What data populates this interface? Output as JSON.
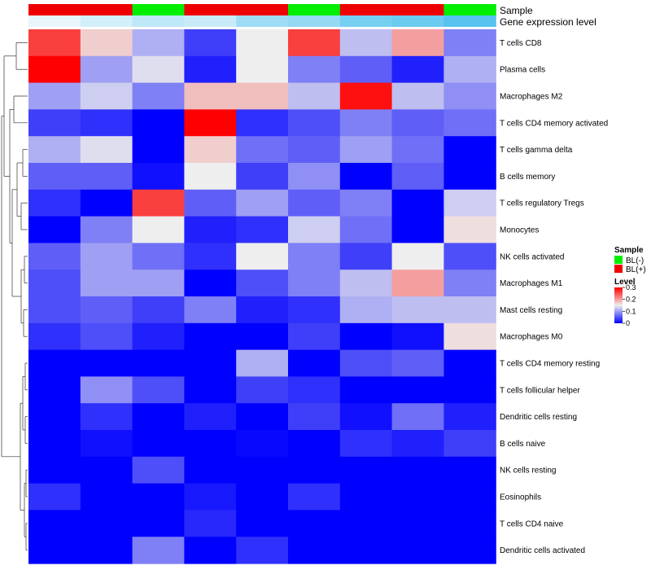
{
  "chart_data": {
    "type": "heatmap",
    "title": "",
    "annotations": {
      "sample": {
        "label": "Sample",
        "values": [
          "BL(+)",
          "BL(+)",
          "BL(-)",
          "BL(+)",
          "BL(+)",
          "BL(-)",
          "BL(+)",
          "BL(+)",
          "BL(-)"
        ]
      },
      "gene_expression": {
        "label": "Gene expression level",
        "values": [
          0.02,
          0.04,
          0.06,
          0.05,
          0.09,
          0.1,
          0.13,
          0.14,
          0.16
        ]
      }
    },
    "rows": [
      "T cells CD8",
      "Plasma cells",
      "Macrophages M2",
      "T cells CD4 memory activated",
      "T cells gamma delta",
      "B cells memory",
      "T cells regulatory  Tregs",
      "Monocytes",
      "NK cells activated",
      "Macrophages M1",
      "Mast cells resting",
      "Macrophages M0",
      "T cells CD4 memory resting",
      "T cells follicular helper",
      "Dendritic cells resting",
      "B cells naive",
      "NK cells resting",
      "Eosinophils",
      "T cells CD4 naive",
      "Dendritic cells activated"
    ],
    "values": [
      [
        0.26,
        0.17,
        0.11,
        0.04,
        0.15,
        0.26,
        0.12,
        0.2,
        0.08
      ],
      [
        0.3,
        0.1,
        0.14,
        0.02,
        0.15,
        0.08,
        0.06,
        0.02,
        0.11
      ],
      [
        0.1,
        0.13,
        0.08,
        0.18,
        0.18,
        0.12,
        0.29,
        0.12,
        0.09
      ],
      [
        0.04,
        0.03,
        0.0,
        0.3,
        0.03,
        0.05,
        0.08,
        0.06,
        0.07
      ],
      [
        0.11,
        0.14,
        0.0,
        0.17,
        0.07,
        0.06,
        0.1,
        0.07,
        0.0
      ],
      [
        0.06,
        0.06,
        0.01,
        0.15,
        0.04,
        0.09,
        0.0,
        0.06,
        0.0
      ],
      [
        0.03,
        0.0,
        0.26,
        0.06,
        0.1,
        0.06,
        0.08,
        0.0,
        0.13
      ],
      [
        0.0,
        0.08,
        0.15,
        0.02,
        0.03,
        0.13,
        0.07,
        0.0,
        0.16
      ],
      [
        0.06,
        0.1,
        0.07,
        0.03,
        0.15,
        0.08,
        0.04,
        0.15,
        0.05
      ],
      [
        0.05,
        0.1,
        0.1,
        0.0,
        0.05,
        0.08,
        0.12,
        0.2,
        0.08
      ],
      [
        0.05,
        0.06,
        0.04,
        0.08,
        0.02,
        0.03,
        0.11,
        0.12,
        0.12
      ],
      [
        0.03,
        0.05,
        0.02,
        0.0,
        0.0,
        0.04,
        0.0,
        0.01,
        0.16
      ],
      [
        0.0,
        0.0,
        0.0,
        0.0,
        0.11,
        0.0,
        0.05,
        0.06,
        0.0
      ],
      [
        0.0,
        0.09,
        0.05,
        0.0,
        0.04,
        0.03,
        0.0,
        0.0,
        0.0
      ],
      [
        0.0,
        0.03,
        0.0,
        0.02,
        0.0,
        0.04,
        0.01,
        0.07,
        0.02
      ],
      [
        0.0,
        0.01,
        0.0,
        0.0,
        0.005,
        0.0,
        0.03,
        0.02,
        0.04
      ],
      [
        0.0,
        0.0,
        0.05,
        0.0,
        0.0,
        0.0,
        0.0,
        0.0,
        0.0
      ],
      [
        0.03,
        0.0,
        0.0,
        0.015,
        0.0,
        0.03,
        0.0,
        0.0,
        0.0
      ],
      [
        0.0,
        0.0,
        0.0,
        0.025,
        0.0,
        0.0,
        0.0,
        0.0,
        0.0
      ],
      [
        0.0,
        0.0,
        0.08,
        0.0,
        0.03,
        0.0,
        0.0,
        0.0,
        0.0
      ]
    ],
    "legend": {
      "sample": {
        "title": "Sample",
        "entries": [
          {
            "label": "BL(-)",
            "color": "#00ee00"
          },
          {
            "label": "BL(+)",
            "color": "#ee0000"
          }
        ]
      },
      "level": {
        "title": "Level",
        "ticks": [
          0.3,
          0.2,
          0.1,
          0
        ]
      }
    },
    "color_scale": {
      "low": "#0000ff",
      "mid": "#eeeeee",
      "high": "#ff0000",
      "min": 0,
      "mid_value": 0.15,
      "max": 0.3
    },
    "row_dendrogram": true,
    "legend_position": "right"
  }
}
